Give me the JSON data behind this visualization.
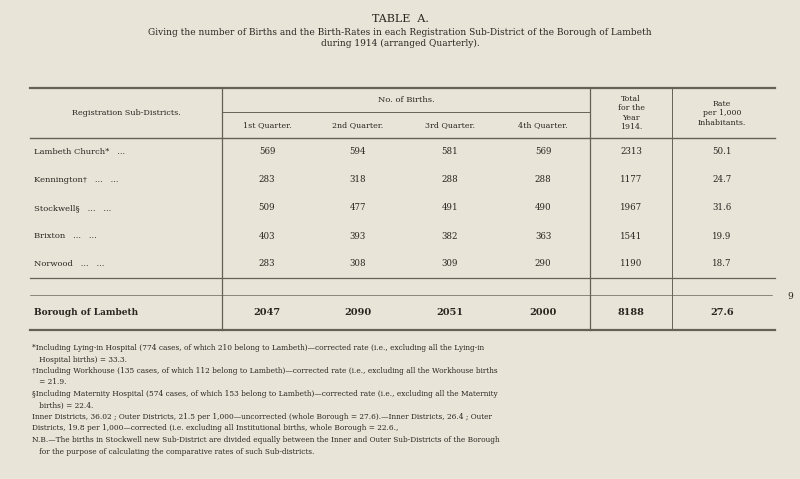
{
  "title": "TABLE  A.",
  "subtitle": "Giving the number of Births and the Birth-Rates in each Registration Sub-District of the Borough of Lambeth\nduring 1914 (arranged Quarterly).",
  "bg_color": "#e8e4d8",
  "col_headers": [
    "1st Quarter.",
    "2nd Quarter.",
    "3rd Quarter.",
    "4th Quarter."
  ],
  "districts": [
    "Lambeth Church*   ...",
    "Kennington†   ...   ...",
    "Stockwell§   ...   ...",
    "Brixton   ...   ...",
    "Norwood   ...   ..."
  ],
  "q1": [
    569,
    283,
    509,
    403,
    283
  ],
  "q2": [
    594,
    318,
    477,
    393,
    308
  ],
  "q3": [
    581,
    288,
    491,
    382,
    309
  ],
  "q4": [
    569,
    288,
    490,
    363,
    290
  ],
  "totals": [
    2313,
    1177,
    1967,
    1541,
    1190
  ],
  "rates": [
    "50.1",
    "24.7",
    "31.6",
    "19.9",
    "18.7"
  ],
  "borough_row": [
    "Borough of Lambeth",
    "2047",
    "2090",
    "2051",
    "2000",
    "8188",
    "27.6"
  ],
  "footnote_lines": [
    "*Including Lying-in Hospital (774 cases, of which 210 belong to Lambeth)—corrected rate (i.e., excluding all the Lying-in",
    "   Hospital births) = 33.3.",
    "†Including Workhouse (135 cases, of which 112 belong to Lambeth)—corrected rate (i.e., excluding all the Workhouse births",
    "   = 21.9.",
    "§Including Maternity Hospital (574 cases, of which 153 belong to Lambeth)—corrected rate (i.e., excluding all the Maternity",
    "   births) = 22.4.",
    "Inner Districts, 36.02 ; Outer Districts, 21.5 per 1,000—uncorrected (whole Borough = 27.6).—Inner Districts, 26.4 ; Outer",
    "Districts, 19.8 per 1,000—corrected (i.e. excluding all Institutional births, whole Borough = 22.6.,",
    "N.B.—The births in Stockwell new Sub-District are divided equally between the Inner and Outer Sub-Districts of the Borough",
    "   for the purpose of calculating the comparative rates of such Sub-districts."
  ],
  "page_number": "9",
  "text_color": "#2a2520",
  "line_color": "#666055"
}
